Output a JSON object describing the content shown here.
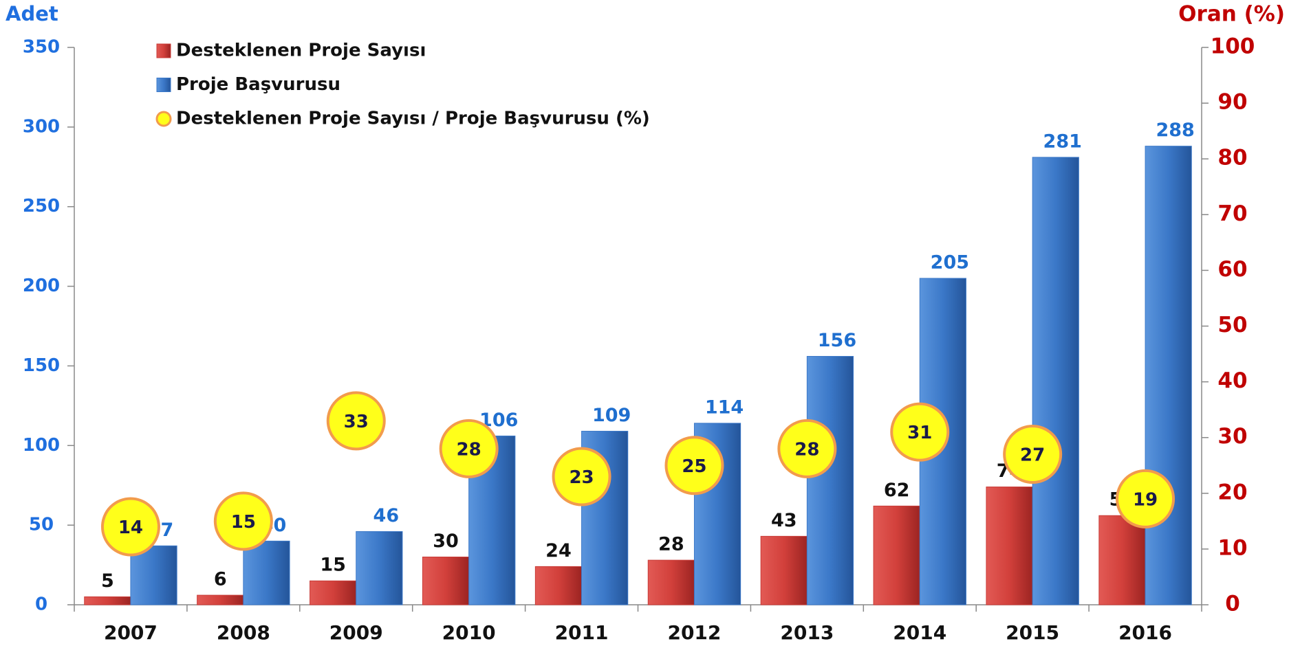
{
  "chart_data": {
    "type": "bar",
    "y_label": "Adet",
    "y2_label": "Oran (%)",
    "categories": [
      "2007",
      "2008",
      "2009",
      "2010",
      "2011",
      "2012",
      "2013",
      "2014",
      "2015",
      "2016"
    ],
    "series": [
      {
        "name": "Desteklenen Proje Sayısı",
        "color": "#c83a36",
        "values": [
          5,
          6,
          15,
          30,
          24,
          28,
          43,
          62,
          74,
          56
        ]
      },
      {
        "name": "Proje Başvurusu",
        "color": "#3b78c8",
        "values": [
          37,
          40,
          46,
          106,
          109,
          114,
          156,
          205,
          281,
          288
        ]
      },
      {
        "name": "Desteklenen Proje Sayısı / Proje Başvurusu (%)",
        "type": "scatter",
        "axis": "y2",
        "color": "#ffff1a",
        "edge": "#f29b4c",
        "values": [
          14,
          15,
          33,
          28,
          23,
          25,
          28,
          31,
          27,
          19
        ]
      }
    ],
    "ylim": [
      0,
      350
    ],
    "yticks": [
      0,
      50,
      100,
      150,
      200,
      250,
      300,
      350
    ],
    "y2lim": [
      0,
      100
    ],
    "y2ticks": [
      0,
      10,
      20,
      30,
      40,
      50,
      60,
      70,
      80,
      90,
      100
    ]
  }
}
